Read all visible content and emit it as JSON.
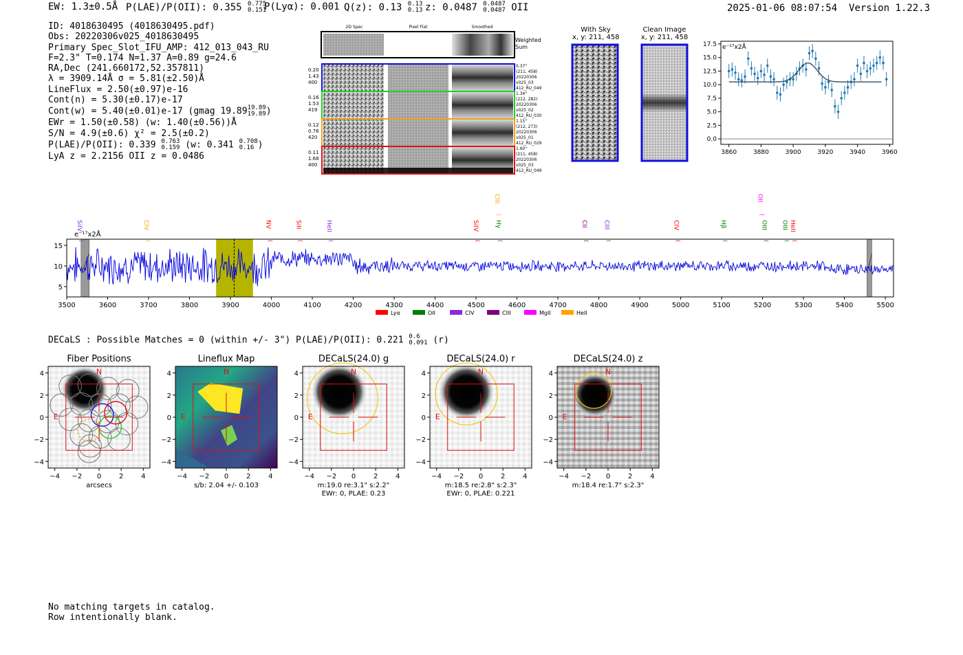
{
  "header": {
    "ew": "EW: 1.3±0.5Å",
    "plae_label": "P(LAE)/P(OII): 0.355",
    "plae_hi": "0.775",
    "plae_lo": "0.151",
    "plya": "P(Lyα): 0.001",
    "qz_label": "Q(z): 0.13",
    "qz_hi": "0.13",
    "qz_lo": "0.13",
    "z_label": "z: 0.0487",
    "z_hi": "0.0487",
    "z_lo": "0.0487",
    "z_line": "OII",
    "timestamp": "2025-01-06 08:07:54",
    "version": "Version 1.22.3"
  },
  "info": {
    "line1": "ID: 4018630495 (4018630495.pdf)",
    "line2": "Obs: 20220306v025_4018630495",
    "line3": "Primary Spec_Slot_IFU_AMP: 412_013_043_RU",
    "line4": "F=2.3\"  T=0.174  N=1.37  A=0.89  g=24.6",
    "line5": "RA,Dec (241.660172,52.357811)",
    "line6": "λ = 3909.14Å   σ = 5.81(±2.50)Å",
    "line7": "LineFlux = 2.50(±0.97)e-16",
    "line8": "Cont(n) = 5.30(±0.17)e-17",
    "line9": "Cont(w) = 5.40(±0.01)e-17 (gmag 19.89",
    "line9_hi": "19.89",
    "line9_lo": "19.89",
    "line9_end": ")",
    "line10": "EWr = 1.50(±0.58)  (w: 1.40(±0.56))Å",
    "line11": "S/N = 4.9(±0.6)   χ² = 2.5(±0.2)",
    "line12": "P(LAE)/P(OII): 0.339",
    "line12_hi": "0.763",
    "line12_lo": "0.159",
    "line12_mid": " (w: 0.341",
    "line12_hi2": "0.708",
    "line12_lo2": "0.16",
    "line12_end": ")",
    "line13": "LyA z = 2.2156   OII z = 0.0486"
  },
  "cutouts": {
    "col_2d": "2D Spec",
    "col_flat": "Pixel Flat",
    "col_smooth": "Smoothed",
    "weighted": "Weighted",
    "sum": "Sum",
    "rows": [
      {
        "a": "0.20",
        "b": "1.43",
        "c": "400",
        "r1": "0.37\"",
        "r2": "(211, 458)",
        "r3": "20220306",
        "r4": "v025_03",
        "r5": "412_RU_049",
        "color": "#1010e0"
      },
      {
        "a": "0.16",
        "b": "1.53",
        "c": "419",
        "r1": "1.34\"",
        "r2": "(212, 282)",
        "r3": "20220306",
        "r4": "v025_02",
        "r5": "412_RU_030",
        "color": "#20d020"
      },
      {
        "a": "0.12",
        "b": "0.76",
        "c": "420",
        "r1": "1.15\"",
        "r2": "(212, 273)",
        "r3": "20220306",
        "r4": "v025_01",
        "r5": "412_RU_029",
        "color": "#f0a020"
      },
      {
        "a": "0.11",
        "b": "1.68",
        "c": "400",
        "r1": "1.60\"",
        "r2": "(211, 458)",
        "r3": "20220306",
        "r4": "v025_03",
        "r5": "412_RU_049",
        "color": "#e01010"
      }
    ],
    "sky_title": "With Sky",
    "sky_sub": "x, y: 211, 458",
    "clean_title": "Clean Image",
    "clean_sub": "x, y: 211, 458"
  },
  "lines_legend": [
    {
      "name": "Lyα",
      "color": "#ff0000"
    },
    {
      "name": "OII",
      "color": "#008000"
    },
    {
      "name": "CIV",
      "color": "#8a2be2"
    },
    {
      "name": "CIII",
      "color": "#800080"
    },
    {
      "name": "MgII",
      "color": "#ff00ff"
    },
    {
      "name": "HeII",
      "color": "#ffa500"
    }
  ],
  "decals": {
    "header": "DECaLS : Possible Matches = 0 (within +/- 3\")  P(LAE)/P(OII): 0.221",
    "hi": "0.6",
    "lo": "0.091",
    "end": "(r)",
    "panels": [
      {
        "title": "Fiber Positions",
        "cap1": "arcsecs",
        "cap2": ""
      },
      {
        "title": "Lineflux Map",
        "cap1": "s/b: 2.04 +/- 0.103",
        "cap2": ""
      },
      {
        "title": "DECaLS(24.0) g",
        "cap1": "m:19.0  re:3.1\"  s:2.2\"",
        "cap2": "EWr: 0, PLAE: 0.23"
      },
      {
        "title": "DECaLS(24.0) r",
        "cap1": "m:18.5  re:2.8\"  s:2.3\"",
        "cap2": "EWr: 0, PLAE: 0.221"
      },
      {
        "title": "DECaLS(24.0) z",
        "cap1": "m:18.4  re:1.7\"  s:2.3\"",
        "cap2": ""
      }
    ],
    "north": "N",
    "east": "E"
  },
  "footer": {
    "line1": "No matching targets in catalog.",
    "line2": "Row intentionally blank."
  },
  "chart_data": [
    {
      "type": "line",
      "title": "",
      "ylabel": "e⁻¹⁷x2Å",
      "xlabel": "",
      "xlim": [
        3500,
        5520
      ],
      "ylim": [
        2.5,
        16.5
      ],
      "xticks": [
        3500,
        3600,
        3700,
        3800,
        3900,
        4000,
        4100,
        4200,
        4300,
        4400,
        4500,
        4600,
        4700,
        4800,
        4900,
        5000,
        5100,
        5200,
        5300,
        5400,
        5500
      ],
      "yticks": [
        5,
        10,
        15
      ],
      "highlight_range": [
        3865,
        3955
      ],
      "marked_line": 3909.14,
      "masked_ranges": [
        [
          3535,
          3555
        ],
        [
          5455,
          5467
        ]
      ],
      "line_labels": [
        {
          "name": "SiIV",
          "x": 3527,
          "color": "#8a2be2",
          "level": "low"
        },
        {
          "name": "CIV",
          "x": 3690,
          "color": "#ffa500",
          "level": "low"
        },
        {
          "name": "NV",
          "x": 3988,
          "color": "#ff0000",
          "level": "low"
        },
        {
          "name": "SiII",
          "x": 4062,
          "color": "#ff0000",
          "level": "low"
        },
        {
          "name": "HeII",
          "x": 4137,
          "color": "#8a2be2",
          "level": "low"
        },
        {
          "name": "SiIV",
          "x": 4495,
          "color": "#ff0000",
          "level": "low"
        },
        {
          "name": "CIII",
          "x": 4547,
          "color": "#ffa500",
          "level": "high"
        },
        {
          "name": "Hγ",
          "x": 4550,
          "color": "#008000",
          "level": "low"
        },
        {
          "name": "CII",
          "x": 4760,
          "color": "#800080",
          "level": "low"
        },
        {
          "name": "CIII",
          "x": 4815,
          "color": "#8a2be2",
          "level": "low"
        },
        {
          "name": "CIV",
          "x": 4985,
          "color": "#ff0000",
          "level": "low"
        },
        {
          "name": "Hβ",
          "x": 5100,
          "color": "#008000",
          "level": "low"
        },
        {
          "name": "OII",
          "x": 5190,
          "color": "#ff00ff",
          "level": "high"
        },
        {
          "name": "OIII",
          "x": 5200,
          "color": "#008000",
          "level": "low"
        },
        {
          "name": "OIII",
          "x": 5250,
          "color": "#008000",
          "level": "low"
        },
        {
          "name": "HeII",
          "x": 5270,
          "color": "#ff0000",
          "level": "low"
        }
      ],
      "series": [
        {
          "name": "spectrum",
          "color": "#0000dd",
          "note": "noisy flux, mean ~10, higher scatter below 4000Å"
        }
      ]
    },
    {
      "type": "scatter",
      "title": "",
      "ylabel": "e⁻¹⁷x2Å",
      "xlim": [
        3855,
        3962
      ],
      "ylim": [
        -1,
        18
      ],
      "xticks": [
        3860,
        3880,
        3900,
        3920,
        3940,
        3960
      ],
      "yticks": [
        0.0,
        2.5,
        5.0,
        7.5,
        10.0,
        12.5,
        15.0,
        17.5
      ],
      "fit": {
        "type": "gaussian",
        "center": 3909.14,
        "sigma": 5.81,
        "amplitude": 3.5,
        "baseline": 10.5
      },
      "x": [
        3860,
        3862,
        3864,
        3866,
        3868,
        3870,
        3872,
        3874,
        3876,
        3878,
        3880,
        3882,
        3884,
        3886,
        3888,
        3890,
        3892,
        3894,
        3896,
        3898,
        3900,
        3902,
        3904,
        3906,
        3908,
        3910,
        3912,
        3914,
        3916,
        3918,
        3920,
        3922,
        3924,
        3926,
        3928,
        3930,
        3932,
        3934,
        3936,
        3938,
        3940,
        3942,
        3944,
        3946,
        3948,
        3950,
        3952,
        3954,
        3956,
        3958
      ],
      "values": [
        12.5,
        12.8,
        12.2,
        11.0,
        10.8,
        11.5,
        14.8,
        13.0,
        12.0,
        11.2,
        12.5,
        11.8,
        13.5,
        11.5,
        11.0,
        8.5,
        8.2,
        10.0,
        10.5,
        11.0,
        11.0,
        12.0,
        13.0,
        13.5,
        12.8,
        15.8,
        16.2,
        14.8,
        13.0,
        10.2,
        9.5,
        10.5,
        9.0,
        6.0,
        5.0,
        7.5,
        8.5,
        9.5,
        10.5,
        11.0,
        13.5,
        12.0,
        14.0,
        12.5,
        13.0,
        13.5,
        14.0,
        15.0,
        14.0,
        11.0
      ],
      "errors": [
        1.3,
        1.3,
        1.3,
        1.3,
        1.3,
        1.3,
        1.3,
        1.3,
        1.3,
        1.3,
        1.3,
        1.3,
        1.3,
        1.3,
        1.3,
        1.3,
        1.3,
        1.3,
        1.3,
        1.3,
        1.3,
        1.3,
        1.3,
        1.3,
        1.3,
        1.3,
        1.3,
        1.3,
        1.3,
        1.3,
        1.3,
        1.3,
        1.3,
        1.3,
        1.3,
        1.3,
        1.3,
        1.3,
        1.3,
        1.3,
        1.3,
        1.3,
        1.3,
        1.3,
        1.3,
        1.3,
        1.3,
        1.3,
        1.3,
        1.3
      ]
    }
  ]
}
